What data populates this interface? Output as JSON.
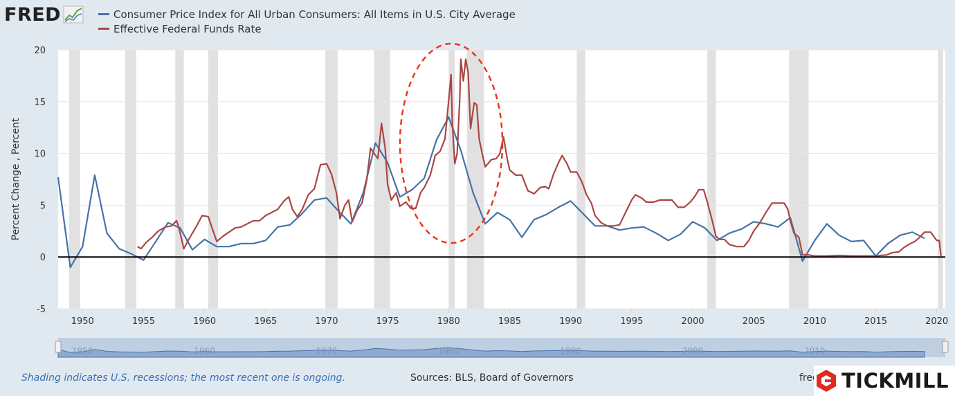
{
  "logo": {
    "text": "FRED",
    "icon": "fred-chart-icon"
  },
  "legend": [
    {
      "label": "Consumer Price Index for All Urban Consumers: All Items in U.S. City Average",
      "color": "#4572a7"
    },
    {
      "label": "Effective Federal Funds Rate",
      "color": "#aa4643"
    }
  ],
  "footer": {
    "note": "Shading indicates U.S. recessions; the most recent one is ongoing.",
    "sources": "Sources: BLS, Board of Governors",
    "site": "fred"
  },
  "brand": {
    "name": "TICKMILL",
    "color": "#e02b20"
  },
  "chart_data": {
    "type": "line",
    "ylabel": "Percent Change , Percent",
    "xlim": [
      1948,
      2020.7
    ],
    "ylim": [
      -5,
      20
    ],
    "yticks": [
      -5,
      0,
      5,
      10,
      15,
      20
    ],
    "xticks": [
      1950,
      1955,
      1960,
      1965,
      1970,
      1975,
      1980,
      1985,
      1990,
      1995,
      2000,
      2005,
      2010,
      2015,
      2020
    ],
    "navigator_labels": [
      "1950",
      "1960",
      "1970",
      "1980",
      "1990",
      "2000",
      "2010"
    ],
    "grid": "horizontal",
    "zero_line": true,
    "recessions": [
      [
        1948.9,
        1949.8
      ],
      [
        1953.5,
        1954.4
      ],
      [
        1957.6,
        1958.3
      ],
      [
        1960.3,
        1961.1
      ],
      [
        1969.9,
        1970.9
      ],
      [
        1973.9,
        1975.2
      ],
      [
        1980.0,
        1980.5
      ],
      [
        1981.5,
        1982.9
      ],
      [
        1990.5,
        1991.2
      ],
      [
        2001.2,
        2001.9
      ],
      [
        2007.9,
        2009.5
      ],
      [
        2020.1,
        2020.5
      ]
    ],
    "series": [
      {
        "name": "Consumer Price Index for All Urban Consumers: All Items in U.S. City Average",
        "color": "#4572a7",
        "points": [
          [
            1948,
            7.7
          ],
          [
            1949,
            -1.0
          ],
          [
            1950,
            1.0
          ],
          [
            1951,
            7.9
          ],
          [
            1952,
            2.3
          ],
          [
            1953,
            0.8
          ],
          [
            1954,
            0.3
          ],
          [
            1955,
            -0.3
          ],
          [
            1956,
            1.5
          ],
          [
            1957,
            3.3
          ],
          [
            1958,
            2.8
          ],
          [
            1959,
            0.7
          ],
          [
            1960,
            1.7
          ],
          [
            1961,
            1.0
          ],
          [
            1962,
            1.0
          ],
          [
            1963,
            1.3
          ],
          [
            1964,
            1.3
          ],
          [
            1965,
            1.6
          ],
          [
            1966,
            2.9
          ],
          [
            1967,
            3.1
          ],
          [
            1968,
            4.2
          ],
          [
            1969,
            5.5
          ],
          [
            1970,
            5.7
          ],
          [
            1971,
            4.4
          ],
          [
            1972,
            3.2
          ],
          [
            1973,
            6.2
          ],
          [
            1974,
            11.0
          ],
          [
            1975,
            9.1
          ],
          [
            1976,
            5.8
          ],
          [
            1977,
            6.5
          ],
          [
            1978,
            7.6
          ],
          [
            1979,
            11.3
          ],
          [
            1980,
            13.5
          ],
          [
            1981,
            10.3
          ],
          [
            1982,
            6.2
          ],
          [
            1983,
            3.2
          ],
          [
            1984,
            4.3
          ],
          [
            1985,
            3.6
          ],
          [
            1986,
            1.9
          ],
          [
            1987,
            3.6
          ],
          [
            1988,
            4.1
          ],
          [
            1989,
            4.8
          ],
          [
            1990,
            5.4
          ],
          [
            1991,
            4.2
          ],
          [
            1992,
            3.0
          ],
          [
            1993,
            3.0
          ],
          [
            1994,
            2.6
          ],
          [
            1995,
            2.8
          ],
          [
            1996,
            2.9
          ],
          [
            1997,
            2.3
          ],
          [
            1998,
            1.6
          ],
          [
            1999,
            2.2
          ],
          [
            2000,
            3.4
          ],
          [
            2001,
            2.8
          ],
          [
            2002,
            1.6
          ],
          [
            2003,
            2.3
          ],
          [
            2004,
            2.7
          ],
          [
            2005,
            3.4
          ],
          [
            2006,
            3.2
          ],
          [
            2007,
            2.9
          ],
          [
            2008,
            3.8
          ],
          [
            2009,
            -0.4
          ],
          [
            2010,
            1.6
          ],
          [
            2011,
            3.2
          ],
          [
            2012,
            2.1
          ],
          [
            2013,
            1.5
          ],
          [
            2014,
            1.6
          ],
          [
            2015,
            0.1
          ],
          [
            2016,
            1.3
          ],
          [
            2017,
            2.1
          ],
          [
            2018,
            2.4
          ],
          [
            2019,
            1.8
          ]
        ]
      },
      {
        "name": "Effective Federal Funds Rate",
        "color": "#aa4643",
        "points": [
          [
            1954.5,
            1.0
          ],
          [
            1954.8,
            0.8
          ],
          [
            1955.2,
            1.4
          ],
          [
            1955.7,
            1.9
          ],
          [
            1956.2,
            2.5
          ],
          [
            1956.8,
            2.9
          ],
          [
            1957.3,
            3.0
          ],
          [
            1957.7,
            3.5
          ],
          [
            1957.9,
            2.8
          ],
          [
            1958.3,
            0.8
          ],
          [
            1958.7,
            1.7
          ],
          [
            1959.3,
            2.9
          ],
          [
            1959.8,
            4.0
          ],
          [
            1960.3,
            3.9
          ],
          [
            1960.7,
            2.5
          ],
          [
            1961.0,
            1.5
          ],
          [
            1961.5,
            2.0
          ],
          [
            1962.0,
            2.4
          ],
          [
            1962.5,
            2.8
          ],
          [
            1963.0,
            2.9
          ],
          [
            1963.5,
            3.2
          ],
          [
            1964.0,
            3.5
          ],
          [
            1964.5,
            3.5
          ],
          [
            1965.0,
            4.0
          ],
          [
            1965.5,
            4.3
          ],
          [
            1966.0,
            4.6
          ],
          [
            1966.5,
            5.4
          ],
          [
            1966.9,
            5.8
          ],
          [
            1967.2,
            4.6
          ],
          [
            1967.6,
            3.9
          ],
          [
            1968.0,
            4.6
          ],
          [
            1968.5,
            6.0
          ],
          [
            1969.0,
            6.6
          ],
          [
            1969.5,
            8.9
          ],
          [
            1970.0,
            9.0
          ],
          [
            1970.4,
            8.0
          ],
          [
            1970.8,
            6.2
          ],
          [
            1971.1,
            3.7
          ],
          [
            1971.5,
            5.0
          ],
          [
            1971.8,
            5.5
          ],
          [
            1972.1,
            3.4
          ],
          [
            1972.5,
            4.5
          ],
          [
            1972.9,
            5.2
          ],
          [
            1973.3,
            7.5
          ],
          [
            1973.6,
            10.5
          ],
          [
            1973.9,
            10.0
          ],
          [
            1974.2,
            9.5
          ],
          [
            1974.5,
            12.9
          ],
          [
            1974.8,
            10.5
          ],
          [
            1975.0,
            7.0
          ],
          [
            1975.3,
            5.5
          ],
          [
            1975.7,
            6.2
          ],
          [
            1976.0,
            4.9
          ],
          [
            1976.5,
            5.3
          ],
          [
            1976.9,
            4.7
          ],
          [
            1977.3,
            4.7
          ],
          [
            1977.7,
            6.2
          ],
          [
            1978.0,
            6.7
          ],
          [
            1978.5,
            7.9
          ],
          [
            1978.9,
            9.8
          ],
          [
            1979.3,
            10.2
          ],
          [
            1979.7,
            11.4
          ],
          [
            1979.9,
            13.8
          ],
          [
            1980.2,
            17.6
          ],
          [
            1980.3,
            13.0
          ],
          [
            1980.5,
            9.0
          ],
          [
            1980.7,
            10.0
          ],
          [
            1980.9,
            15.0
          ],
          [
            1981.0,
            19.1
          ],
          [
            1981.2,
            17.0
          ],
          [
            1981.4,
            19.1
          ],
          [
            1981.6,
            17.8
          ],
          [
            1981.8,
            12.4
          ],
          [
            1981.9,
            13.3
          ],
          [
            1982.1,
            14.9
          ],
          [
            1982.3,
            14.7
          ],
          [
            1982.5,
            11.4
          ],
          [
            1982.8,
            9.7
          ],
          [
            1983.0,
            8.7
          ],
          [
            1983.5,
            9.4
          ],
          [
            1983.9,
            9.5
          ],
          [
            1984.2,
            10.0
          ],
          [
            1984.5,
            11.6
          ],
          [
            1984.8,
            9.5
          ],
          [
            1985.0,
            8.4
          ],
          [
            1985.5,
            7.9
          ],
          [
            1986.0,
            7.9
          ],
          [
            1986.5,
            6.4
          ],
          [
            1987.0,
            6.1
          ],
          [
            1987.5,
            6.7
          ],
          [
            1987.9,
            6.8
          ],
          [
            1988.2,
            6.6
          ],
          [
            1988.6,
            8.0
          ],
          [
            1989.0,
            9.1
          ],
          [
            1989.3,
            9.8
          ],
          [
            1989.7,
            9.0
          ],
          [
            1990.0,
            8.2
          ],
          [
            1990.5,
            8.2
          ],
          [
            1990.9,
            7.3
          ],
          [
            1991.3,
            6.0
          ],
          [
            1991.7,
            5.2
          ],
          [
            1992.0,
            4.0
          ],
          [
            1992.5,
            3.3
          ],
          [
            1993.0,
            3.0
          ],
          [
            1993.5,
            3.0
          ],
          [
            1994.0,
            3.1
          ],
          [
            1994.5,
            4.3
          ],
          [
            1995.0,
            5.5
          ],
          [
            1995.3,
            6.0
          ],
          [
            1995.8,
            5.7
          ],
          [
            1996.2,
            5.3
          ],
          [
            1996.8,
            5.3
          ],
          [
            1997.3,
            5.5
          ],
          [
            1997.8,
            5.5
          ],
          [
            1998.3,
            5.5
          ],
          [
            1998.8,
            4.8
          ],
          [
            1999.3,
            4.8
          ],
          [
            1999.8,
            5.3
          ],
          [
            2000.2,
            5.9
          ],
          [
            2000.5,
            6.5
          ],
          [
            2000.9,
            6.5
          ],
          [
            2001.2,
            5.3
          ],
          [
            2001.6,
            3.5
          ],
          [
            2001.9,
            2.0
          ],
          [
            2002.2,
            1.7
          ],
          [
            2002.6,
            1.7
          ],
          [
            2003.0,
            1.2
          ],
          [
            2003.6,
            1.0
          ],
          [
            2004.2,
            1.0
          ],
          [
            2004.6,
            1.6
          ],
          [
            2005.0,
            2.5
          ],
          [
            2005.5,
            3.3
          ],
          [
            2006.0,
            4.3
          ],
          [
            2006.5,
            5.2
          ],
          [
            2007.0,
            5.2
          ],
          [
            2007.5,
            5.2
          ],
          [
            2007.8,
            4.6
          ],
          [
            2008.0,
            3.5
          ],
          [
            2008.3,
            2.3
          ],
          [
            2008.7,
            1.9
          ],
          [
            2009.0,
            0.2
          ],
          [
            2009.5,
            0.2
          ],
          [
            2010.0,
            0.1
          ],
          [
            2011.0,
            0.1
          ],
          [
            2012.0,
            0.15
          ],
          [
            2013.0,
            0.1
          ],
          [
            2014.0,
            0.1
          ],
          [
            2015.0,
            0.1
          ],
          [
            2015.9,
            0.2
          ],
          [
            2016.3,
            0.4
          ],
          [
            2016.9,
            0.5
          ],
          [
            2017.3,
            0.9
          ],
          [
            2017.7,
            1.2
          ],
          [
            2018.2,
            1.5
          ],
          [
            2018.6,
            1.9
          ],
          [
            2019.0,
            2.4
          ],
          [
            2019.5,
            2.4
          ],
          [
            2019.8,
            1.9
          ],
          [
            2020.0,
            1.6
          ],
          [
            2020.2,
            1.6
          ],
          [
            2020.35,
            0.1
          ]
        ]
      }
    ]
  }
}
